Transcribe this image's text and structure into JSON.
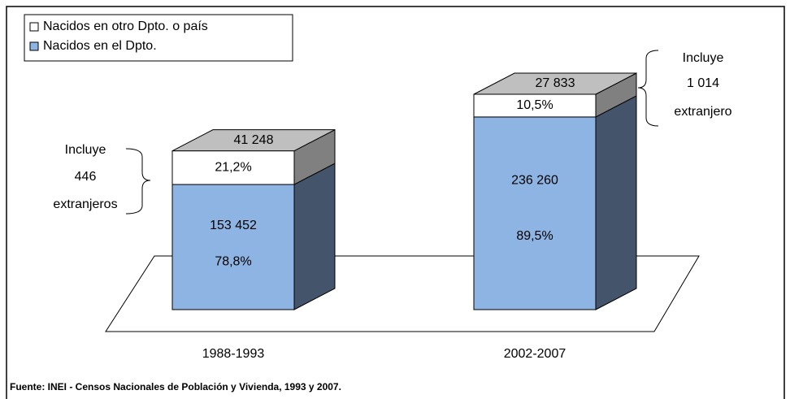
{
  "chart_data": {
    "type": "bar3d_stacked",
    "categories": [
      "1988-1993",
      "2002-2007"
    ],
    "series": [
      {
        "name": "Nacidos en otro Dpto. o país",
        "color": "#ffffff",
        "values": [
          41248,
          27833
        ],
        "value_labels": [
          "41 248",
          "27 833"
        ],
        "shares": [
          21.2,
          10.5
        ],
        "share_labels": [
          "21,2%",
          "10,5%"
        ]
      },
      {
        "name": "Nacidos en el Dpto.",
        "color": "#8eb4e3",
        "values": [
          153452,
          236260
        ],
        "value_labels": [
          "153 452",
          "236 260"
        ],
        "shares": [
          78.8,
          89.5
        ],
        "share_labels": [
          "78,8%",
          "89,5%"
        ]
      }
    ],
    "annotations": [
      {
        "lines": [
          "Incluye",
          "446",
          "extranjeros"
        ]
      },
      {
        "lines": [
          "Incluye",
          "1 014",
          "extranjero"
        ]
      }
    ],
    "source": "Fuente: INEI - Censos Nacionales de Población y Vivienda, 1993 y 2007."
  }
}
